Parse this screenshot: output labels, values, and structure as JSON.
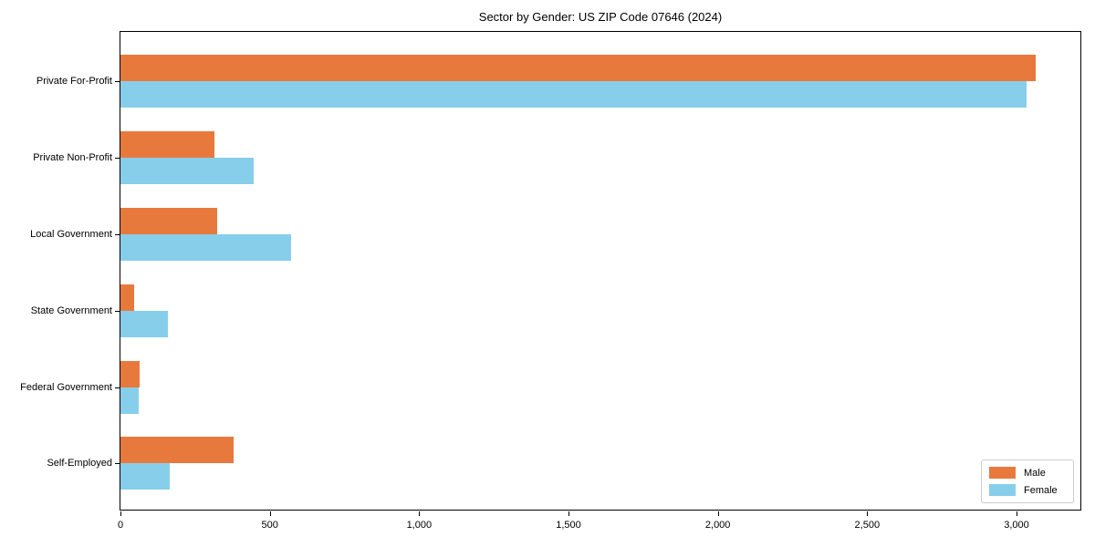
{
  "chart_data": {
    "type": "bar",
    "orientation": "horizontal",
    "title": "Sector by Gender: US ZIP Code 07646 (2024)",
    "categories": [
      "Private For-Profit",
      "Private Non-Profit",
      "Local Government",
      "State Government",
      "Federal Government",
      "Self-Employed"
    ],
    "series": [
      {
        "name": "Male",
        "color": "#E8793D",
        "values": [
          3065,
          315,
          325,
          45,
          65,
          380
        ]
      },
      {
        "name": "Female",
        "color": "#87CEEB",
        "values": [
          3035,
          445,
          570,
          160,
          60,
          165
        ]
      }
    ],
    "xlabel": "",
    "ylabel": "",
    "xlim": [
      0,
      3220
    ],
    "xticks": [
      0,
      500,
      1000,
      1500,
      2000,
      2500,
      3000
    ],
    "xtick_labels": [
      "0",
      "500",
      "1,000",
      "1,500",
      "2,000",
      "2,500",
      "3,000"
    ],
    "grid": false,
    "plot_background": "#ffffff",
    "spine_color": "#000000",
    "legend": {
      "position": "lower right",
      "entries": [
        "Male",
        "Female"
      ]
    }
  }
}
